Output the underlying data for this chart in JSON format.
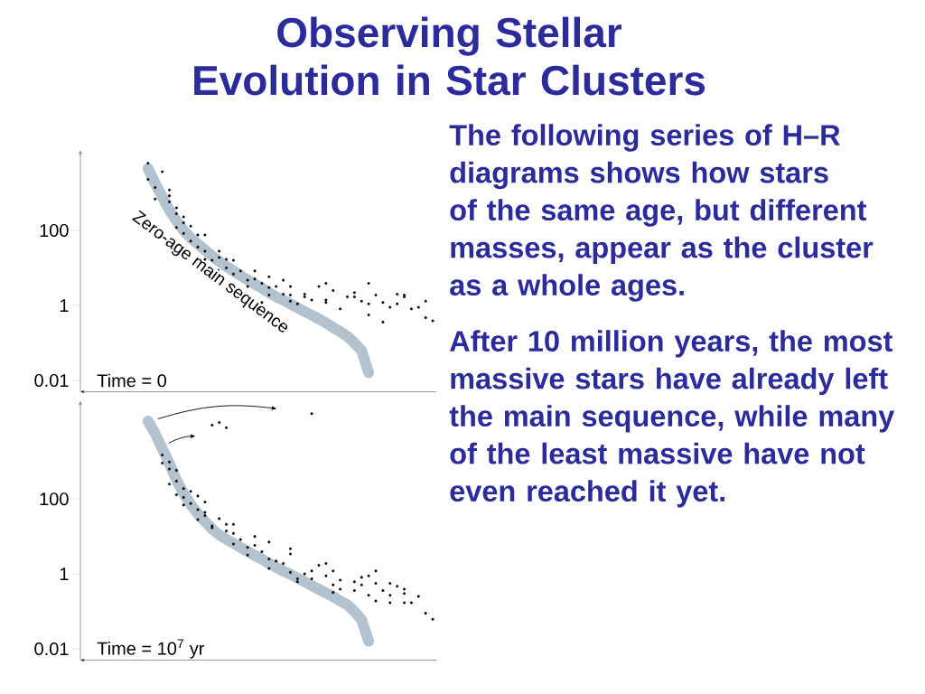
{
  "chart_data": [
    {
      "type": "scatter",
      "title": "Observing Stellar Evolution in Star Clusters",
      "subtitle": "Time = 0",
      "annotations": [
        "The following series of H–R diagrams shows how stars of the same age, but different masses, appear as the cluster as a whole ages.",
        "After 10 million years, the most massive stars have already left the main sequence, while many of the least massive have not even reached it yet."
      ],
      "log": "y",
      "tick_labels": "y",
      "ylim": [
        0.005,
        10000
      ],
      "yticks": [
        0.01,
        1,
        100
      ],
      "categories": [
        null,
        null,
        null,
        null,
        null,
        null,
        null,
        null,
        null,
        null,
        null,
        null,
        null,
        null,
        null,
        null,
        null,
        null,
        null,
        null,
        null,
        null,
        null,
        null,
        null,
        null,
        null,
        null,
        null,
        null,
        null,
        null,
        null,
        null,
        null,
        null,
        null,
        null,
        null,
        null,
        null,
        null,
        null,
        null,
        null,
        null,
        null,
        null,
        null,
        null
      ],
      "series": [
        {
          "type": "line",
          "name": "Zero-age main sequence",
          "color": "#b3c2cf",
          "marker": "none",
          "values": [
            null,
            null,
            null,
            null,
            null,
            null,
            null,
            null,
            null,
            4500,
            1800,
            790,
            350,
            180,
            100,
            63,
            43,
            30,
            21,
            15,
            11,
            8.3,
            6.3,
            4.8,
            3.7,
            2.9,
            2.2,
            1.7,
            1.4,
            1.1,
            0.87,
            0.69,
            0.55,
            0.44,
            0.34,
            0.26,
            0.2,
            0.15,
            0.1,
            0.063,
            0.016,
            null,
            null,
            null,
            null,
            null,
            null,
            null,
            null,
            null
          ]
        },
        {
          "type": "scatter",
          "color": "#000000",
          "marker": "circle",
          "values": [
            null,
            null,
            null,
            null,
            null,
            null,
            null,
            null,
            null,
            6200,
            1400,
            3700,
            1200,
            400,
            230,
            130,
            76,
            76,
            16,
            28,
            17,
            16,
            8.3,
            4.7,
            8.3,
            3.9,
            5.8,
            3.2,
            4.7,
            3.2,
            1.1,
            1.7,
            1.4,
            3.2,
            3.9,
            2.5,
            0.81,
            1.7,
            2.2,
            1.3,
            3.9,
            1.9,
            1.2,
            0.89,
            2.0,
            1.7,
            0.81,
            0.89,
            1.3,
            0.39
          ]
        },
        {
          "type": "scatter",
          "color": "#000000",
          "marker": "circle",
          "values": [
            null,
            null,
            null,
            null,
            null,
            null,
            null,
            null,
            null,
            2300,
            690,
            null,
            840,
            120,
            160,
            52,
            36,
            28,
            null,
            19,
            10,
            6.9,
            null,
            3.2,
            5.1,
            1.2,
            3.0,
            null,
            2.0,
            1.9,
            null,
            2.0,
            null,
            null,
            1.2,
            null,
            null,
            null,
            1.7,
            null,
            1.1,
            null,
            0.36,
            null,
            1.1,
            1.9,
            null,
            null,
            0.47,
            null
          ]
        },
        {
          "type": "scatter",
          "color": "#000000",
          "marker": "circle",
          "values": [
            null,
            null,
            null,
            null,
            null,
            null,
            null,
            null,
            null,
            null,
            null,
            null,
            580,
            280,
            83,
            null,
            null,
            17,
            null,
            null,
            null,
            null,
            null,
            null,
            null,
            null,
            1.9,
            null,
            null,
            1.3,
            null,
            null,
            null,
            null,
            1.4,
            null,
            null,
            null,
            null,
            null,
            0.56,
            null,
            null,
            null,
            null,
            null,
            null,
            null,
            null,
            null
          ]
        }
      ]
    },
    {
      "type": "scatter",
      "subtitle": "Time = 10$^{7}$ yr",
      "log": "y",
      "tick_labels": "y",
      "ylim": [
        0.005,
        30000
      ],
      "yticks": [
        0.01,
        1,
        100
      ],
      "categories": [
        null,
        null,
        null,
        null,
        null,
        null,
        null,
        null,
        null,
        null,
        null,
        null,
        null,
        null,
        null,
        null,
        null,
        null,
        null,
        null,
        null,
        null,
        null,
        null,
        null,
        null,
        null,
        null,
        null,
        null,
        null,
        null,
        null,
        null,
        null,
        null,
        null,
        null,
        null,
        null,
        null,
        null,
        null,
        null,
        null,
        null,
        null,
        null,
        null,
        null
      ],
      "series": [
        {
          "type": "line",
          "color": "#b3c2cf",
          "marker": "none",
          "values": [
            null,
            null,
            null,
            null,
            null,
            null,
            null,
            null,
            null,
            12000,
            5600,
            2200,
            890,
            320,
            140,
            71,
            40,
            25,
            16,
            11,
            8.5,
            6.6,
            5.1,
            4.0,
            3.1,
            2.5,
            1.9,
            1.5,
            1.2,
            0.98,
            0.78,
            0.62,
            0.49,
            0.39,
            0.31,
            0.25,
            0.19,
            0.15,
            0.1,
            0.06,
            0.016,
            null,
            null,
            null,
            null,
            null,
            null,
            null,
            null,
            null
          ]
        },
        {
          "type": "scatter",
          "color": "#000000",
          "marker": "circle",
          "values": [
            null,
            null,
            null,
            null,
            null,
            null,
            null,
            null,
            null,
            null,
            null,
            910,
            970,
            580,
            190,
            160,
            120,
            83,
            9300,
            11000,
            8000,
            21,
            8.3,
            5.1,
            10,
            3.9,
            7.1,
            2.2,
            1.9,
            3.4,
            0.74,
            1.0,
            19000,
            1.7,
            0.89,
            1.2,
            0.39,
            null,
            0.62,
            0.81,
            0.89,
            1.2,
            0.36,
            0.17,
            0.47,
            0.39,
            0.17,
            0.25,
            0.089,
            0.062
          ]
        },
        {
          "type": "scatter",
          "color": "#000000",
          "marker": "circle",
          "values": [
            null,
            null,
            null,
            null,
            null,
            null,
            null,
            null,
            null,
            null,
            null,
            1500,
            630,
            300,
            110,
            76,
            52,
            36,
            19,
            30,
            21,
            12,
            null,
            3.2,
            5.8,
            null,
            2.5,
            null,
            null,
            4.7,
            0.62,
            null,
            1.2,
            null,
            1.9,
            0.51,
            0.68,
            null,
            0.36,
            0.51,
            0.27,
            0.56,
            null,
            0.56,
            null,
            0.3,
            null,
            null,
            null,
            null
          ]
        },
        {
          "type": "scatter",
          "color": "#000000",
          "marker": "circle",
          "values": [
            null,
            null,
            null,
            null,
            null,
            null,
            null,
            null,
            null,
            null,
            null,
            null,
            250,
            130,
            69,
            null,
            28,
            44,
            17,
            null,
            14,
            6.3,
            null,
            null,
            null,
            null,
            1.4,
            null,
            null,
            1.1,
            null,
            null,
            0.74,
            null,
            null,
            0.32,
            null,
            null,
            null,
            null,
            null,
            0.19,
            null,
            0.27,
            null,
            0.17,
            null,
            null,
            null,
            null
          ]
        }
      ]
    }
  ]
}
